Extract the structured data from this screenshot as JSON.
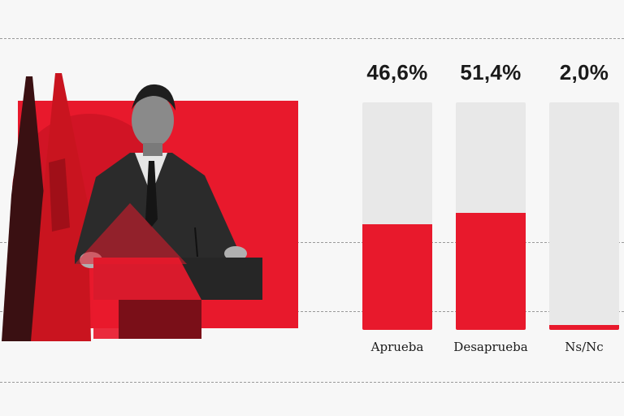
{
  "chart_data": {
    "type": "bar",
    "categories": [
      "Aprueba",
      "Desaprueba",
      "Ns/Nc"
    ],
    "values": [
      46.6,
      51.4,
      2.0
    ],
    "value_labels": [
      "46,6%",
      "51,4%",
      "2,0%"
    ],
    "title": "",
    "xlabel": "",
    "ylabel": "",
    "ylim": [
      0,
      100
    ],
    "grid": false,
    "legend": "none"
  },
  "colors": {
    "accent": "#e8192c",
    "track": "#e8e8e8",
    "background": "#f7f7f7"
  },
  "illustration": {
    "subject": "politician-at-podium-with-flags"
  }
}
